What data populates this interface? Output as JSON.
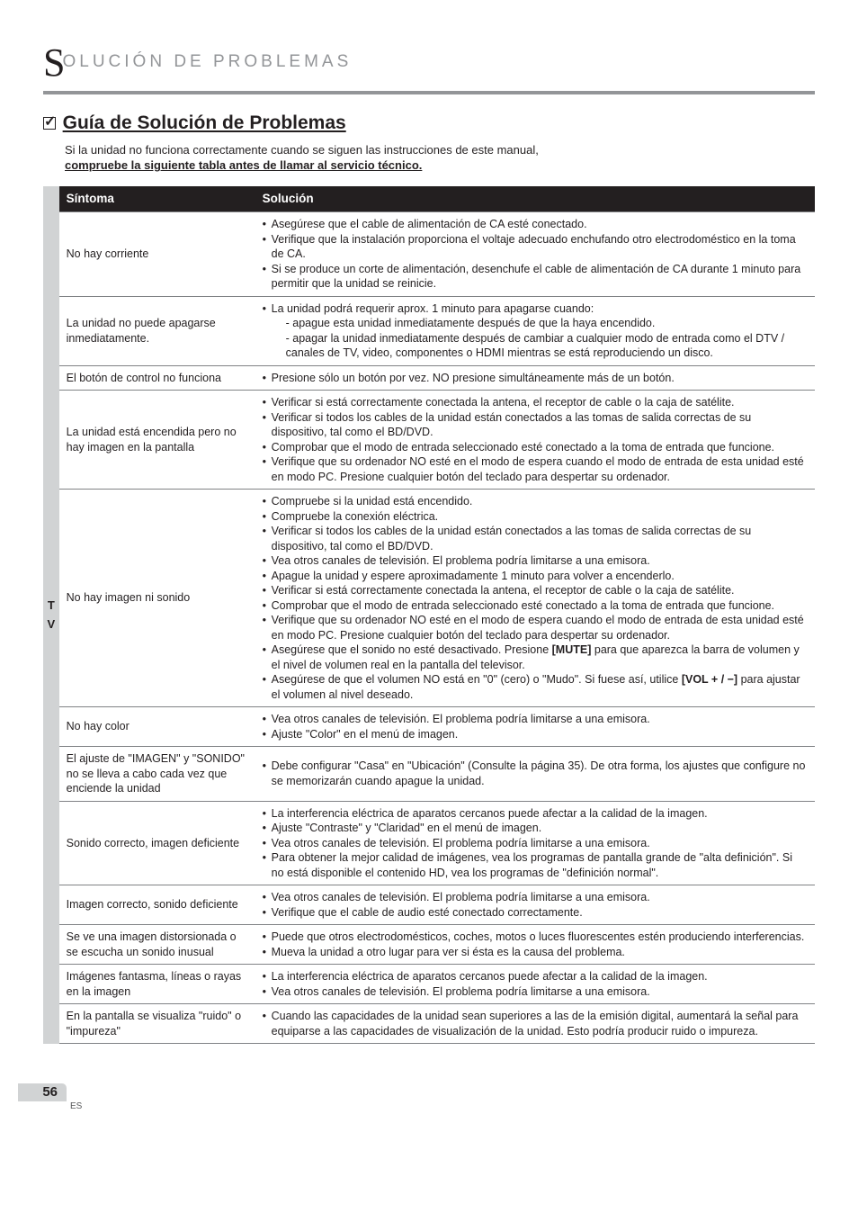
{
  "chapter": {
    "initial": "S",
    "rest": "OLUCIÓN  DE  PROBLEMAS"
  },
  "section": {
    "title": "Guía de Solución de Problemas",
    "intro_line1": "Si la unidad no funciona correctamente cuando se siguen las instrucciones de este manual,",
    "intro_line2": "compruebe la siguiente tabla antes de llamar al servicio técnico."
  },
  "side": {
    "letter1": "T",
    "letter2": "V"
  },
  "table": {
    "headers": {
      "symptom": "Síntoma",
      "solution": "Solución"
    },
    "rows": [
      {
        "symptom": "No hay corriente",
        "bullets": [
          "Asegúrese que el cable de alimentación de CA esté conectado.",
          "Verifique que la instalación proporciona el voltaje adecuado enchufando otro electrodoméstico en la toma de CA.",
          "Si se produce un corte de alimentación, desenchufe el cable de alimentación de CA durante 1 minuto para permitir que la unidad se reinicie."
        ]
      },
      {
        "symptom": "La unidad no puede apagarse inmediatamente.",
        "bullets": [
          "La unidad podrá requerir aprox. 1 minuto para apagarse cuando:\n- apague esta unidad inmediatamente después de que la haya encendido.\n- apagar la unidad inmediatamente después de cambiar a cualquier modo de entrada como el DTV / canales de TV, video, componentes o HDMI mientras se está reproduciendo un disco."
        ]
      },
      {
        "symptom": "El botón de control no funciona",
        "bullets": [
          "Presione sólo un botón por vez. NO presione simultáneamente más de un botón."
        ]
      },
      {
        "symptom": "La unidad está encendida pero no hay imagen en la pantalla",
        "bullets": [
          "Verificar si está correctamente conectada la antena, el receptor de cable o la caja de satélite.",
          "Verificar si todos los cables de la unidad están conectados a las tomas de salida correctas de su dispositivo, tal como el BD/DVD.",
          "Comprobar que el modo de entrada seleccionado esté conectado a la toma de entrada que funcione.",
          "Verifique que su ordenador NO esté en el modo de espera cuando el modo de entrada de esta unidad esté en modo PC. Presione cualquier botón del teclado para despertar su ordenador."
        ]
      },
      {
        "symptom": "No hay imagen ni sonido",
        "bullets": [
          "Compruebe si la unidad está encendido.",
          "Compruebe la conexión eléctrica.",
          "Verificar si todos los cables de la unidad están conectados a las tomas de salida correctas de su dispositivo, tal como el BD/DVD.",
          "Vea otros canales de televisión. El problema podría limitarse a una emisora.",
          "Apague la unidad y espere aproximadamente 1 minuto para volver a encenderlo.",
          "Verificar si está correctamente conectada la antena, el receptor de cable o la caja de satélite.",
          "Comprobar que el modo de entrada seleccionado esté conectado a la toma de entrada que funcione.",
          "Verifique que su ordenador NO esté en el modo de espera cuando el modo de entrada de esta unidad esté en modo PC. Presione cualquier botón del teclado para despertar su ordenador.",
          "Asegúrese que el sonido no esté desactivado. Presione [MUTE] para que aparezca la barra de volumen y el nivel de volumen real en la pantalla del televisor.",
          "Asegúrese de que el volumen NO está en \"0\" (cero) o \"Mudo\". Si fuese así, utilice [VOL + / −] para ajustar el volumen al nivel deseado."
        ]
      },
      {
        "symptom": "No hay color",
        "bullets": [
          "Vea otros canales de televisión. El problema podría limitarse a una emisora.",
          "Ajuste \"Color\" en el menú de imagen."
        ]
      },
      {
        "symptom": "El ajuste de \"IMAGEN\" y \"SONIDO\" no se lleva a cabo cada vez que enciende la unidad",
        "bullets": [
          "Debe configurar \"Casa\" en \"Ubicación\" (Consulte la página 35). De otra forma, los ajustes que configure no se memorizarán cuando apague la unidad."
        ]
      },
      {
        "symptom": "Sonido correcto, imagen deficiente",
        "bullets": [
          "La interferencia eléctrica de aparatos cercanos puede afectar a la calidad de la imagen.",
          "Ajuste \"Contraste\" y \"Claridad\" en el menú de imagen.",
          "Vea otros canales de televisión. El problema podría limitarse a una emisora.",
          "Para obtener la mejor calidad de imágenes, vea los programas de pantalla grande de \"alta definición\". Si no está disponible el contenido HD, vea los programas de \"definición normal\"."
        ]
      },
      {
        "symptom": "Imagen correcto, sonido deficiente",
        "bullets": [
          "Vea otros canales de televisión. El problema podría limitarse a una emisora.",
          "Verifique que el cable de audio esté conectado correctamente."
        ]
      },
      {
        "symptom": "Se ve una imagen distorsionada o se escucha un sonido inusual",
        "bullets": [
          "Puede que otros electrodomésticos, coches, motos o luces fluorescentes estén produciendo interferencias.",
          "Mueva la unidad a otro lugar para ver si ésta es la causa del problema."
        ]
      },
      {
        "symptom": "Imágenes fantasma, líneas o rayas en la imagen",
        "bullets": [
          "La interferencia eléctrica de aparatos cercanos puede afectar a la calidad de la imagen.",
          "Vea otros canales de televisión. El problema podría limitarse a una emisora."
        ]
      },
      {
        "symptom": "En la pantalla se visualiza \"ruido\" o \"impureza\"",
        "bullets": [
          "Cuando las capacidades de la unidad sean superiores a las de la emisión digital, aumentará la señal para equiparse a las capacidades de visualización de la unidad. Esto podría producir ruido o impureza."
        ]
      }
    ]
  },
  "footer": {
    "page": "56",
    "lang": "ES"
  }
}
